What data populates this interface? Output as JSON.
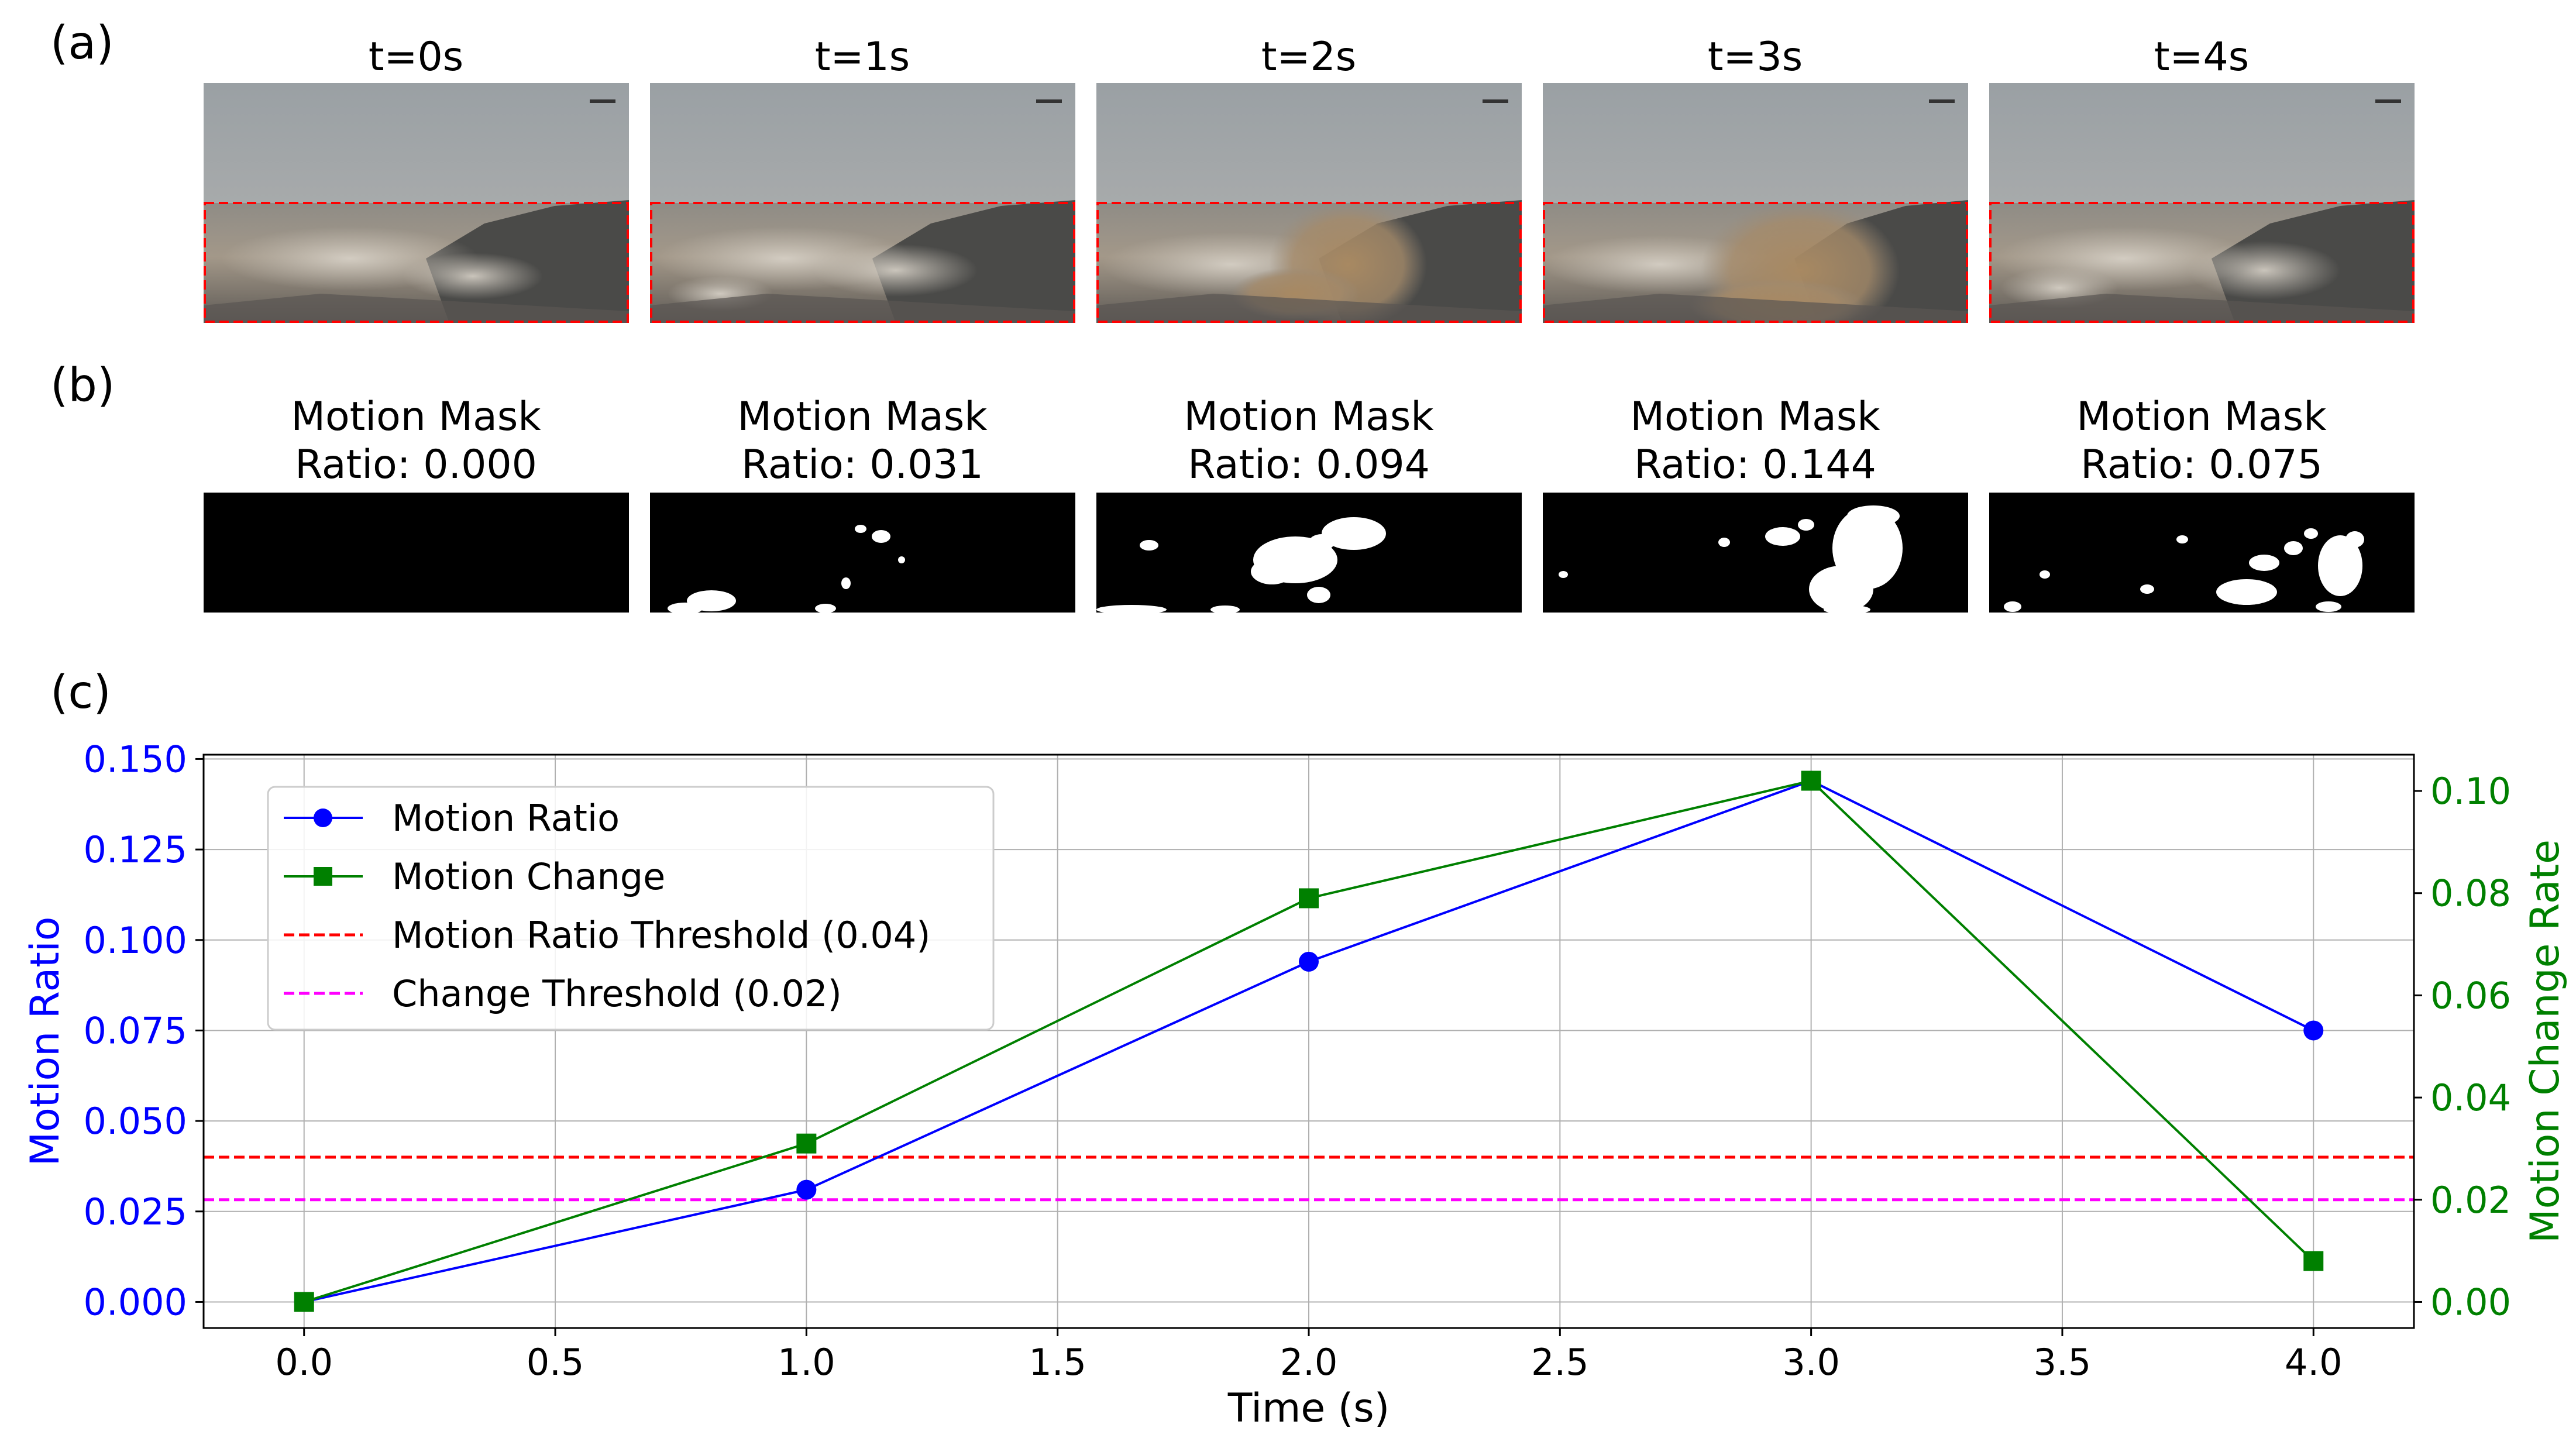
{
  "panel_labels": {
    "a": "(a)",
    "b": "(b)",
    "c": "(c)"
  },
  "frames": [
    {
      "title": "t=0s",
      "mask_title": "Motion Mask",
      "ratio_label": "Ratio: 0.000"
    },
    {
      "title": "t=1s",
      "mask_title": "Motion Mask",
      "ratio_label": "Ratio: 0.031"
    },
    {
      "title": "t=2s",
      "mask_title": "Motion Mask",
      "ratio_label": "Ratio: 0.094"
    },
    {
      "title": "t=3s",
      "mask_title": "Motion Mask",
      "ratio_label": "Ratio: 0.144"
    },
    {
      "title": "t=4s",
      "mask_title": "Motion Mask",
      "ratio_label": "Ratio: 0.075"
    }
  ],
  "colors": {
    "motion_ratio": "#0000ff",
    "motion_change": "#008000",
    "ratio_threshold": "#ff0000",
    "change_threshold": "#ff00ff",
    "roi_box": "#ff0000",
    "grid": "#b0b0b0"
  },
  "chart_data": {
    "type": "line",
    "xlabel": "Time (s)",
    "ylabel": "Motion Ratio",
    "y2label": "Motion Change Rate",
    "x": [
      0.0,
      1.0,
      2.0,
      3.0,
      4.0
    ],
    "xlim": [
      -0.2,
      4.2
    ],
    "ylim": [
      -0.0072,
      0.1512
    ],
    "y2lim": [
      -0.0051,
      0.1071
    ],
    "xticks": [
      "0.0",
      "0.5",
      "1.0",
      "1.5",
      "2.0",
      "2.5",
      "3.0",
      "3.5",
      "4.0"
    ],
    "yticks": [
      "0.000",
      "0.025",
      "0.050",
      "0.075",
      "0.100",
      "0.125",
      "0.150"
    ],
    "y2ticks": [
      "0.00",
      "0.02",
      "0.04",
      "0.06",
      "0.08",
      "0.10"
    ],
    "series": [
      {
        "name": "Motion Ratio",
        "axis": "left",
        "marker": "circle",
        "values": [
          0.0,
          0.031,
          0.094,
          0.144,
          0.075
        ]
      },
      {
        "name": "Motion Change",
        "axis": "right",
        "marker": "square",
        "values": [
          0.0,
          0.031,
          0.079,
          0.102,
          0.008
        ]
      }
    ],
    "thresholds": [
      {
        "name": "Motion Ratio Threshold (0.04)",
        "axis": "left",
        "value": 0.04
      },
      {
        "name": "Change Threshold (0.02)",
        "axis": "right",
        "value": 0.02
      }
    ],
    "legend": "top-left",
    "grid": true
  }
}
